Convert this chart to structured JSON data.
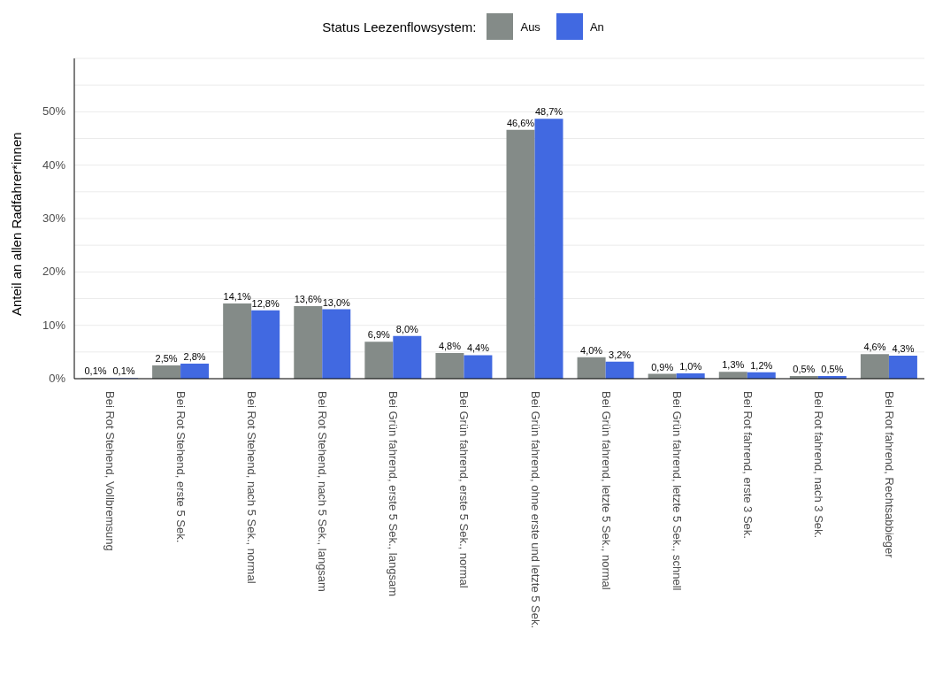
{
  "chart_data": {
    "type": "bar",
    "ylabel": "Anteil an allen Radfahrer*innen",
    "legend_title": "Status Leezenflowsystem:",
    "legend": "top",
    "categories": [
      "Bei Rot Stehend, Vollbremsung",
      "Bei Rot Stehend, erste 5 Sek.",
      "Bei Rot Stehend, nach 5 Sek., normal",
      "Bei Rot Stehend, nach 5 Sek., langsam",
      "Bei Grün fahrend, erste 5 Sek., langsam",
      "Bei Grün fahrend, erste 5 Sek., normal",
      "Bei Grün fahrend, ohne erste und letzte 5 Sek.",
      "Bei Grün fahrend, letzte 5 Sek., normal",
      "Bei Grün fahrend, letzte 5 Sek., schnell",
      "Bei Rot fahrend, erste 3 Sek.",
      "Bei Rot fahrend, nach 3 Sek.",
      "Bei Rot fahrend, Rechtsabbieger"
    ],
    "series": [
      {
        "name": "Aus",
        "color": "#848b88",
        "values": [
          0.1,
          2.5,
          14.1,
          13.6,
          6.9,
          4.8,
          46.6,
          4.0,
          0.9,
          1.3,
          0.5,
          4.6
        ],
        "value_labels": [
          "0,1%",
          "2,5%",
          "14,1%",
          "13,6%",
          "6,9%",
          "4,8%",
          "46,6%",
          "4,0%",
          "0,9%",
          "1,3%",
          "0,5%",
          "4,6%"
        ]
      },
      {
        "name": "An",
        "color": "#4169e1",
        "values": [
          0.1,
          2.8,
          12.8,
          13.0,
          8.0,
          4.4,
          48.7,
          3.2,
          1.0,
          1.2,
          0.5,
          4.3
        ],
        "value_labels": [
          "0,1%",
          "2,8%",
          "12,8%",
          "13,0%",
          "8,0%",
          "4,4%",
          "48,7%",
          "3,2%",
          "1,0%",
          "1,2%",
          "0,5%",
          "4,3%"
        ]
      }
    ],
    "ylim": [
      0,
      60
    ],
    "yticks": [
      {
        "value": 0,
        "label": "0%"
      },
      {
        "value": 5,
        "label": null
      },
      {
        "value": 10,
        "label": "10%"
      },
      {
        "value": 15,
        "label": null
      },
      {
        "value": 20,
        "label": "20%"
      },
      {
        "value": 25,
        "label": null
      },
      {
        "value": 30,
        "label": "30%"
      },
      {
        "value": 35,
        "label": null
      },
      {
        "value": 40,
        "label": "40%"
      },
      {
        "value": 45,
        "label": null
      },
      {
        "value": 50,
        "label": "50%"
      },
      {
        "value": 55,
        "label": null
      }
    ],
    "grid": "y"
  }
}
